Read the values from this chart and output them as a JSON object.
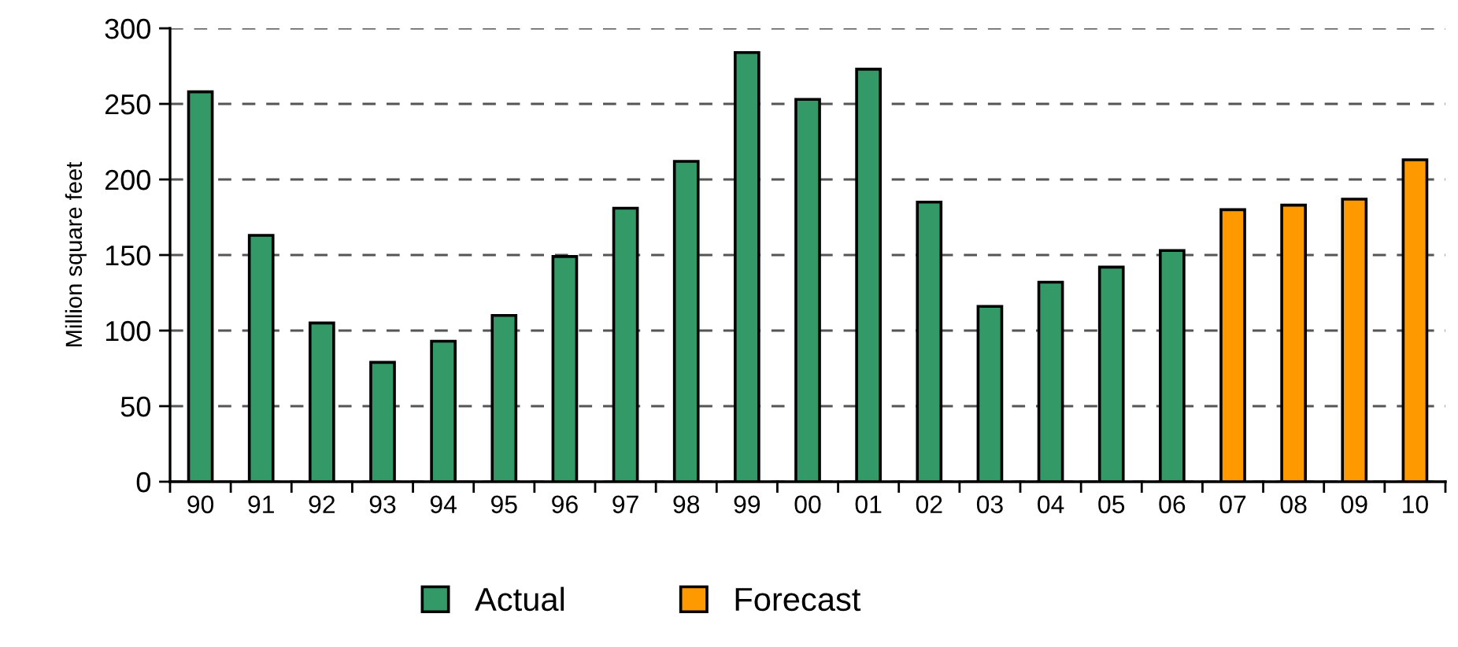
{
  "chart_data": {
    "type": "bar",
    "ylabel": "Million square feet",
    "categories": [
      "90",
      "91",
      "92",
      "93",
      "94",
      "95",
      "96",
      "97",
      "98",
      "99",
      "00",
      "01",
      "02",
      "03",
      "04",
      "05",
      "06",
      "07",
      "08",
      "09",
      "10"
    ],
    "series": [
      {
        "name": "Actual",
        "color": "#339966",
        "values": [
          258,
          163,
          105,
          79,
          93,
          110,
          149,
          181,
          212,
          284,
          253,
          273,
          185,
          116,
          132,
          142,
          153,
          null,
          null,
          null,
          null
        ]
      },
      {
        "name": "Forecast",
        "color": "#ff9900",
        "values": [
          null,
          null,
          null,
          null,
          null,
          null,
          null,
          null,
          null,
          null,
          null,
          null,
          null,
          null,
          null,
          null,
          null,
          180,
          183,
          187,
          213
        ]
      }
    ],
    "ylim": [
      0,
      300
    ],
    "yticks": [
      0,
      50,
      100,
      150,
      200,
      250,
      300
    ],
    "grid": "y",
    "legend": "bottom"
  }
}
